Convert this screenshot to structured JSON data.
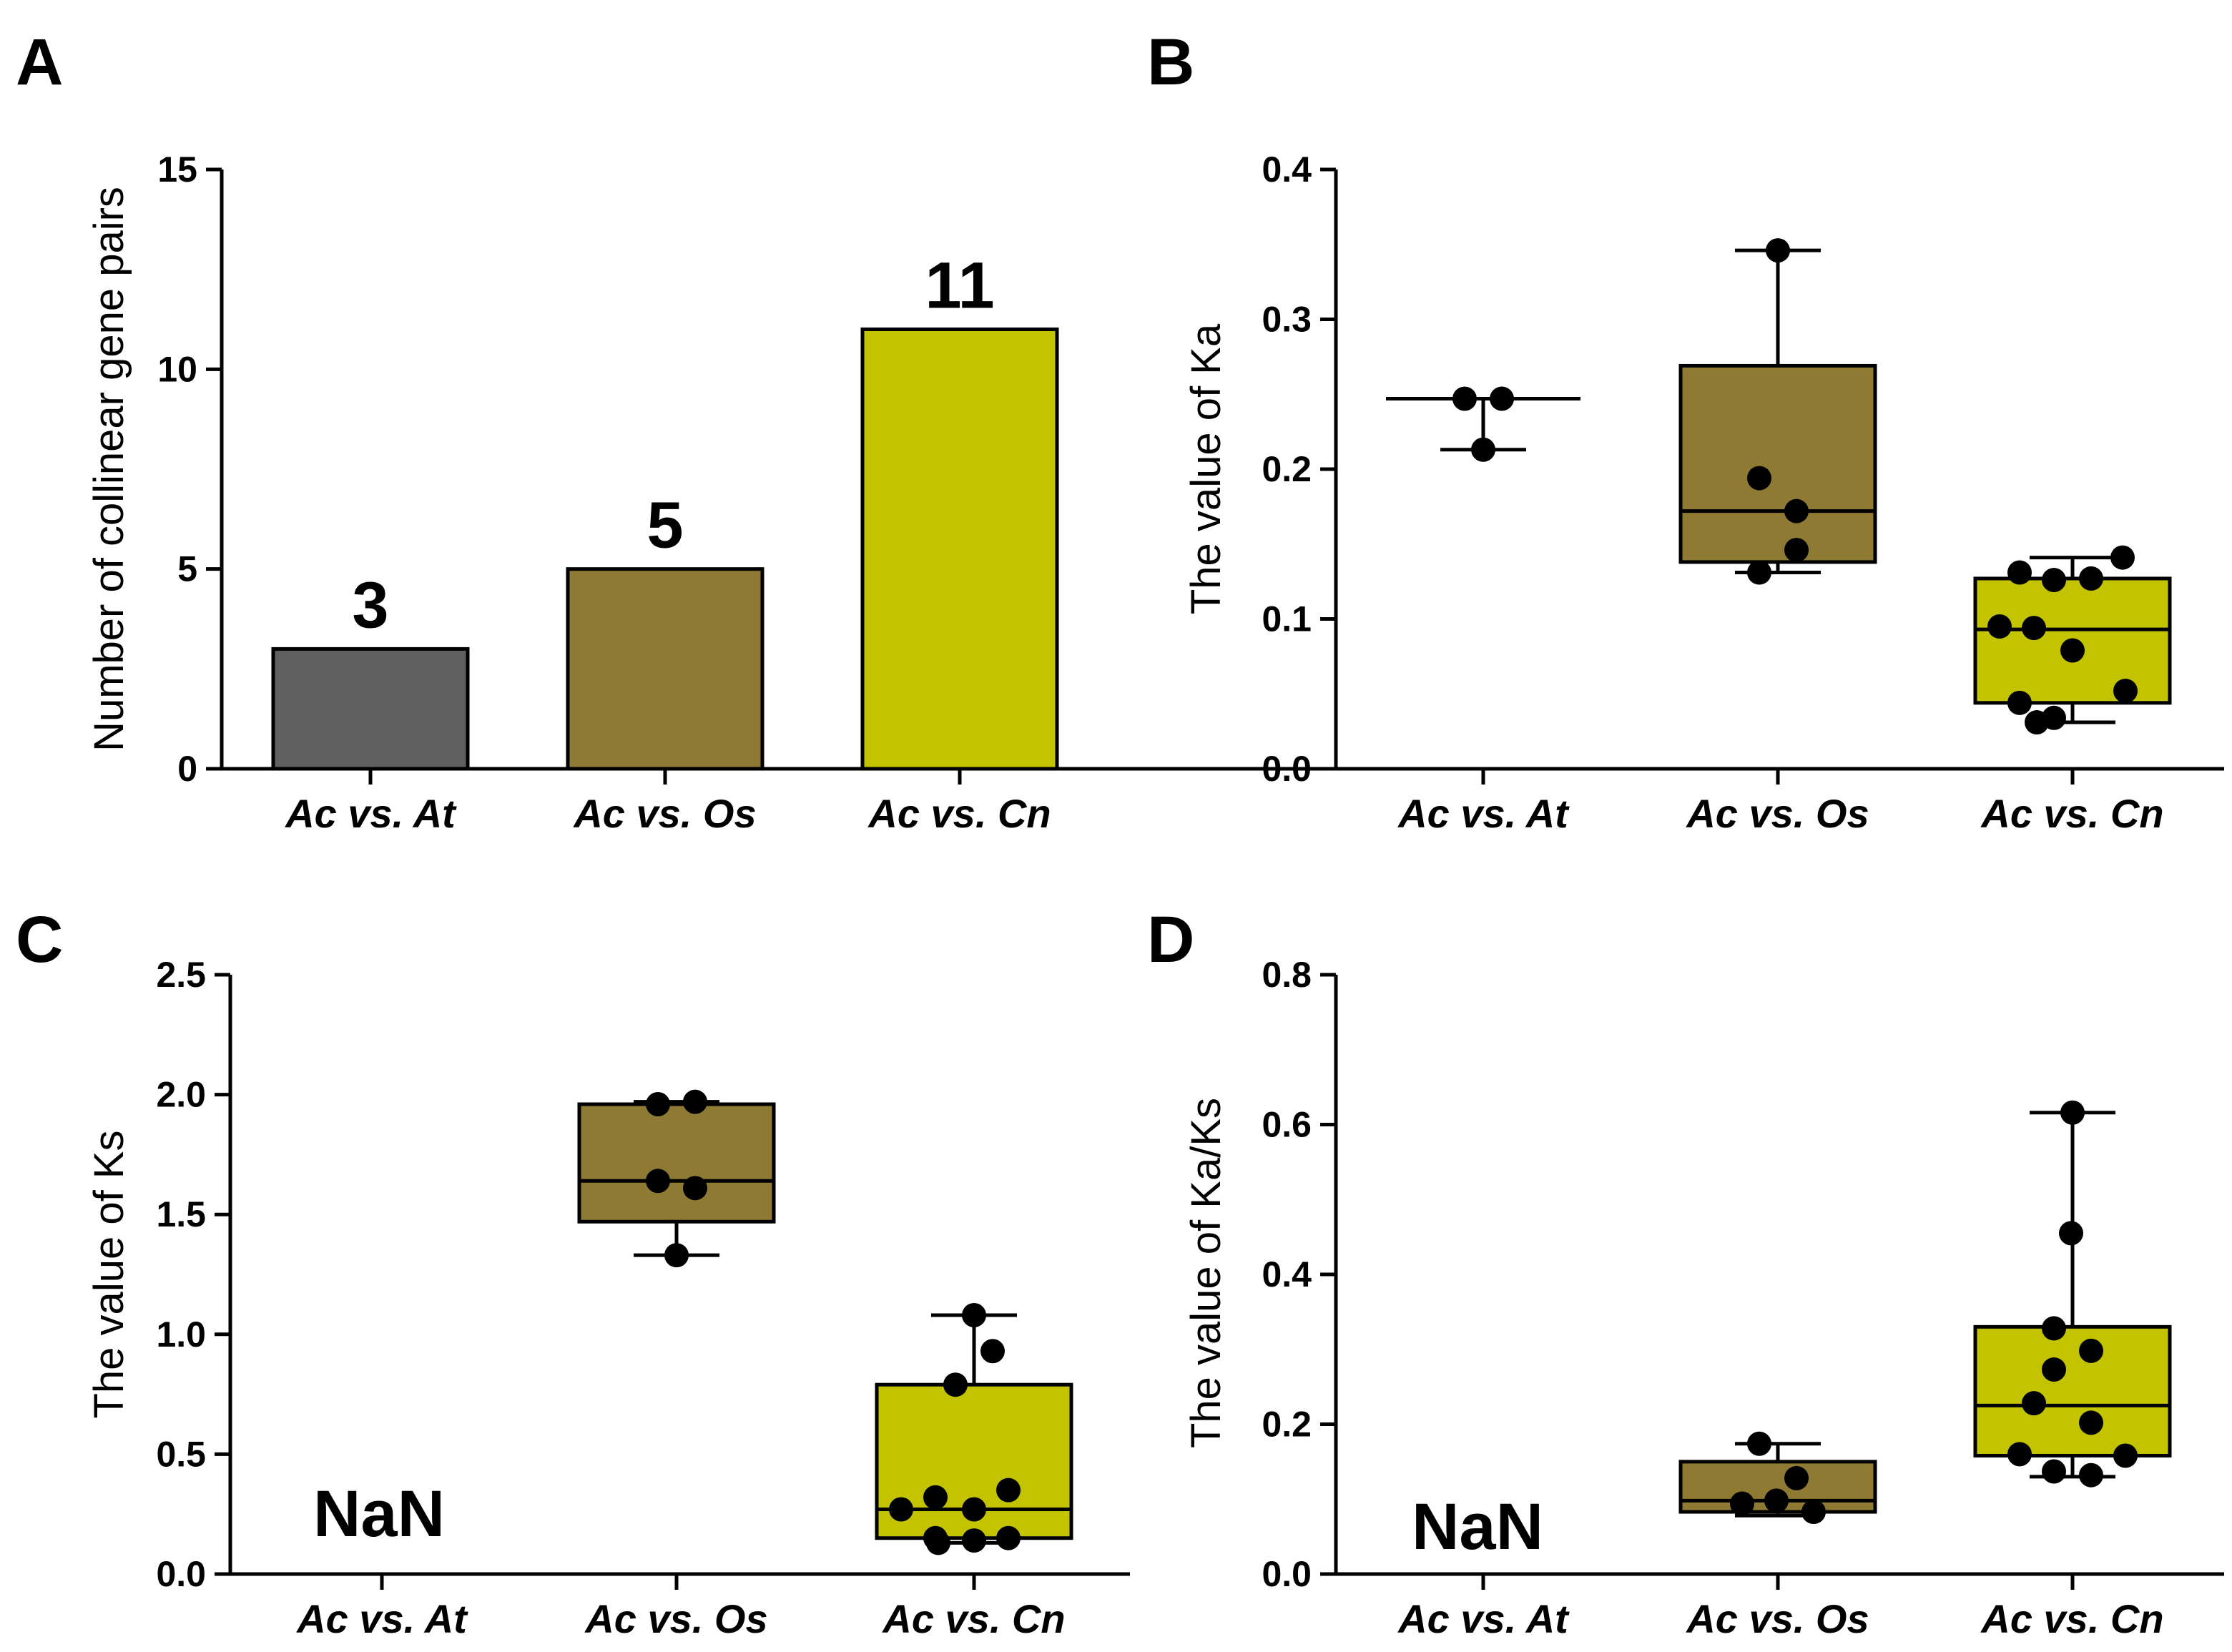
{
  "colors": {
    "At": "#606060",
    "Os": "#8f7a33",
    "Cn": "#c3c300",
    "ink": "#000000"
  },
  "chart_data": [
    {
      "id": "A",
      "panel_label": "A",
      "type": "bar",
      "categories": [
        "Ac vs. At",
        "Ac vs. Os",
        "Ac vs. Cn"
      ],
      "values": [
        3,
        5,
        11
      ],
      "value_labels": [
        "3",
        "5",
        "11"
      ],
      "ylabel": "Number of collinear gene pairs",
      "ylim": [
        0,
        15
      ],
      "yticks": [
        0,
        5,
        10,
        15
      ],
      "ytick_labels": [
        "0",
        "5",
        "10",
        "15"
      ]
    },
    {
      "id": "B",
      "panel_label": "B",
      "type": "box",
      "categories": [
        "Ac vs. At",
        "Ac vs. Os",
        "Ac vs. Cn"
      ],
      "ylabel": "The value of Ka",
      "ylim": [
        0,
        0.4
      ],
      "yticks": [
        0,
        0.1,
        0.2,
        0.3,
        0.4
      ],
      "ytick_labels": [
        "0.0",
        "0.1",
        "0.2",
        "0.3",
        "0.4"
      ],
      "boxes": [
        {
          "min": 0.213,
          "q1": 0.247,
          "median": 0.247,
          "q3": 0.247,
          "max": 0.247
        },
        {
          "min": 0.131,
          "q1": 0.138,
          "median": 0.172,
          "q3": 0.269,
          "max": 0.346
        },
        {
          "min": 0.031,
          "q1": 0.044,
          "median": 0.093,
          "q3": 0.127,
          "max": 0.141
        }
      ],
      "points": [
        [
          0.247,
          0.247,
          0.213
        ],
        [
          0.346,
          0.194,
          0.172,
          0.146,
          0.131
        ],
        [
          0.131,
          0.126,
          0.127,
          0.141,
          0.095,
          0.094,
          0.079,
          0.052,
          0.044,
          0.034,
          0.031
        ]
      ],
      "nan_label": ""
    },
    {
      "id": "C",
      "panel_label": "C",
      "type": "box",
      "categories": [
        "Ac vs. At",
        "Ac vs. Os",
        "Ac vs. Cn"
      ],
      "ylabel": "The value of Ks",
      "ylim": [
        0,
        2.5
      ],
      "yticks": [
        0,
        0.5,
        1.0,
        1.5,
        2.0,
        2.5
      ],
      "ytick_labels": [
        "0.0",
        "0.5",
        "1.0",
        "1.5",
        "2.0",
        "2.5"
      ],
      "boxes": [
        null,
        {
          "min": 1.33,
          "q1": 1.47,
          "median": 1.64,
          "q3": 1.96,
          "max": 1.97
        },
        {
          "min": 0.13,
          "q1": 0.15,
          "median": 0.27,
          "q3": 0.79,
          "max": 1.08
        }
      ],
      "points": [
        [],
        [
          1.96,
          1.97,
          1.64,
          1.61,
          1.33
        ],
        [
          1.08,
          0.93,
          0.79,
          0.35,
          0.32,
          0.27,
          0.27,
          0.15,
          0.14,
          0.13,
          0.15
        ]
      ],
      "nan_label": "NaN"
    },
    {
      "id": "D",
      "panel_label": "D",
      "type": "box",
      "categories": [
        "Ac vs. At",
        "Ac vs. Os",
        "Ac vs. Cn"
      ],
      "ylabel": "The value of Ka/Ks",
      "ylim": [
        0,
        0.8
      ],
      "yticks": [
        0,
        0.2,
        0.4,
        0.6,
        0.8
      ],
      "ytick_labels": [
        "0.0",
        "0.2",
        "0.4",
        "0.6",
        "0.8"
      ],
      "boxes": [
        null,
        {
          "min": 0.078,
          "q1": 0.083,
          "median": 0.098,
          "q3": 0.15,
          "max": 0.174
        },
        {
          "min": 0.13,
          "q1": 0.158,
          "median": 0.225,
          "q3": 0.33,
          "max": 0.616
        }
      ],
      "points": [
        [],
        [
          0.174,
          0.128,
          0.098,
          0.094,
          0.083
        ],
        [
          0.616,
          0.455,
          0.328,
          0.298,
          0.273,
          0.228,
          0.202,
          0.16,
          0.158,
          0.137,
          0.132
        ]
      ],
      "nan_label": "NaN"
    }
  ]
}
